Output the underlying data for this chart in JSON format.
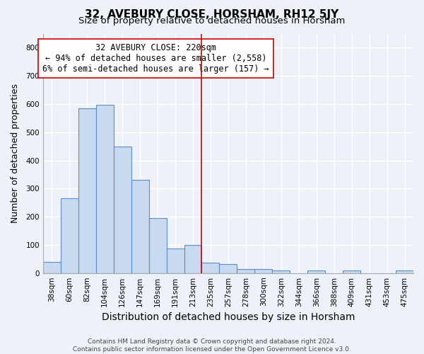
{
  "title": "32, AVEBURY CLOSE, HORSHAM, RH12 5JY",
  "subtitle": "Size of property relative to detached houses in Horsham",
  "xlabel": "Distribution of detached houses by size in Horsham",
  "ylabel": "Number of detached properties",
  "bar_labels": [
    "38sqm",
    "60sqm",
    "82sqm",
    "104sqm",
    "126sqm",
    "147sqm",
    "169sqm",
    "191sqm",
    "213sqm",
    "235sqm",
    "257sqm",
    "278sqm",
    "300sqm",
    "322sqm",
    "344sqm",
    "366sqm",
    "388sqm",
    "409sqm",
    "431sqm",
    "453sqm",
    "475sqm"
  ],
  "bar_heights": [
    40,
    265,
    585,
    598,
    450,
    330,
    195,
    88,
    100,
    37,
    32,
    15,
    15,
    10,
    0,
    8,
    0,
    8,
    0,
    0,
    8
  ],
  "bar_color": "#c9d9f0",
  "bar_edge_color": "#5b8dc8",
  "vline_x": 8.5,
  "vline_color": "#cc0000",
  "annotation_text": "32 AVEBURY CLOSE: 220sqm\n← 94% of detached houses are smaller (2,558)\n6% of semi-detached houses are larger (157) →",
  "ylim": [
    0,
    850
  ],
  "yticks": [
    0,
    100,
    200,
    300,
    400,
    500,
    600,
    700,
    800
  ],
  "background_color": "#eef2f8",
  "grid_color": "#ffffff",
  "footer_text": "Contains HM Land Registry data © Crown copyright and database right 2024.\nContains public sector information licensed under the Open Government Licence v3.0.",
  "title_fontsize": 11,
  "subtitle_fontsize": 9.5,
  "xlabel_fontsize": 10,
  "ylabel_fontsize": 9,
  "tick_fontsize": 7.5,
  "annotation_fontsize": 8.5,
  "footer_fontsize": 6.5
}
